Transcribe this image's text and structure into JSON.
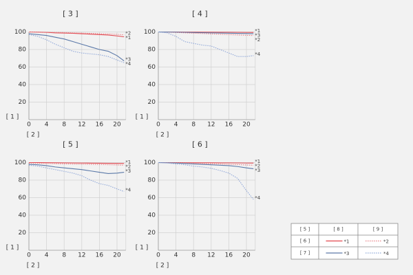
{
  "chart_data": [
    {
      "type": "line",
      "title": "[ 3 ]",
      "y_label": "[ 1 ]",
      "x_label": "[ 2 ]",
      "x": [
        0,
        2,
        4,
        6,
        8,
        10,
        12,
        14,
        16,
        18,
        20,
        21.6
      ],
      "xlim": [
        0,
        22
      ],
      "xticks": [
        0,
        4,
        8,
        12,
        16,
        20
      ],
      "ylim": [
        0,
        100
      ],
      "yticks": [
        20,
        40,
        60,
        80,
        100
      ],
      "grid": true,
      "series": [
        {
          "name": "*1",
          "color": "#e2454d",
          "linestyle": "solid",
          "values": [
            100,
            99.8,
            99.5,
            99,
            98.8,
            98.5,
            98,
            97.5,
            97,
            96.5,
            95.5,
            94.5
          ]
        },
        {
          "name": "*2",
          "color": "#ea8086",
          "linestyle": "dotted",
          "values": [
            100,
            99.9,
            99.7,
            99.5,
            99.3,
            99,
            98.7,
            98.4,
            98,
            97.8,
            97.3,
            96.8
          ]
        },
        {
          "name": "*3",
          "color": "#5a78a8",
          "linestyle": "solid",
          "values": [
            98,
            97,
            96,
            94,
            92,
            89,
            86,
            83,
            80,
            78,
            73,
            67
          ]
        },
        {
          "name": "*4",
          "color": "#8ea6d8",
          "linestyle": "dotted",
          "values": [
            97,
            95,
            91,
            86,
            82,
            78,
            76,
            75,
            74,
            72,
            68,
            65
          ]
        }
      ]
    },
    {
      "type": "line",
      "title": "[ 4 ]",
      "y_label": "[ 1 ]",
      "x_label": "[ 2 ]",
      "x": [
        0,
        2,
        4,
        6,
        8,
        10,
        12,
        14,
        16,
        18,
        20,
        21.6
      ],
      "xlim": [
        0,
        22
      ],
      "xticks": [
        0,
        4,
        8,
        12,
        16,
        20
      ],
      "ylim": [
        0,
        100
      ],
      "yticks": [
        20,
        40,
        60,
        80,
        100
      ],
      "grid": true,
      "series": [
        {
          "name": "*1",
          "color": "#e2454d",
          "linestyle": "solid",
          "values": [
            100,
            100,
            100,
            99.9,
            99.9,
            99.8,
            99.8,
            99.7,
            99.7,
            99.6,
            99.5,
            99.5
          ]
        },
        {
          "name": "*2",
          "color": "#ea8086",
          "linestyle": "dotted",
          "values": [
            100,
            99.8,
            99.5,
            99,
            98.6,
            98.2,
            97.8,
            97.4,
            97,
            96.6,
            96.2,
            96
          ]
        },
        {
          "name": "*3",
          "color": "#5a78a8",
          "linestyle": "solid",
          "values": [
            100,
            99.9,
            99.8,
            99.6,
            99.4,
            99.2,
            99,
            98.8,
            98.6,
            98.4,
            98.2,
            98
          ]
        },
        {
          "name": "*4",
          "color": "#8ea6d8",
          "linestyle": "dotted",
          "values": [
            100,
            99,
            95,
            89,
            87,
            85,
            84,
            80,
            76,
            72,
            72,
            73
          ]
        }
      ]
    },
    {
      "type": "line",
      "title": "[ 5 ]",
      "y_label": "[ 1 ]",
      "x_label": "[ 2 ]",
      "x": [
        0,
        2,
        4,
        6,
        8,
        10,
        12,
        14,
        16,
        18,
        20,
        21.6
      ],
      "xlim": [
        0,
        22
      ],
      "xticks": [
        0,
        4,
        8,
        12,
        16,
        20
      ],
      "ylim": [
        0,
        100
      ],
      "yticks": [
        20,
        40,
        60,
        80,
        100
      ],
      "grid": true,
      "series": [
        {
          "name": "*1",
          "color": "#e2454d",
          "linestyle": "solid",
          "values": [
            100,
            100,
            99.9,
            99.8,
            99.7,
            99.6,
            99.5,
            99.4,
            99.3,
            99.2,
            99.1,
            99
          ]
        },
        {
          "name": "*2",
          "color": "#ea8086",
          "linestyle": "dotted",
          "values": [
            99.5,
            99.3,
            99,
            98.8,
            98.6,
            98.4,
            98.2,
            98,
            97.8,
            97.6,
            97.3,
            97
          ]
        },
        {
          "name": "*3",
          "color": "#5a78a8",
          "linestyle": "solid",
          "values": [
            98,
            97.5,
            96.5,
            95,
            94,
            93,
            92,
            90.5,
            89,
            87.5,
            88,
            89
          ]
        },
        {
          "name": "*4",
          "color": "#8ea6d8",
          "linestyle": "dotted",
          "values": [
            97,
            96,
            94,
            92,
            90,
            88,
            85,
            80,
            76,
            74,
            70,
            67
          ]
        }
      ]
    },
    {
      "type": "line",
      "title": "[ 6 ]",
      "y_label": "[ 1 ]",
      "x_label": "[ 2 ]",
      "x": [
        0,
        2,
        4,
        6,
        8,
        10,
        12,
        14,
        16,
        18,
        20,
        21.6
      ],
      "xlim": [
        0,
        22
      ],
      "xticks": [
        0,
        4,
        8,
        12,
        16,
        20
      ],
      "ylim": [
        0,
        100
      ],
      "yticks": [
        20,
        40,
        60,
        80,
        100
      ],
      "grid": true,
      "series": [
        {
          "name": "*1",
          "color": "#e2454d",
          "linestyle": "solid",
          "values": [
            100,
            100,
            100,
            99.9,
            99.9,
            99.8,
            99.8,
            99.7,
            99.7,
            99.6,
            99.5,
            99.5
          ]
        },
        {
          "name": "*2",
          "color": "#ea8086",
          "linestyle": "dotted",
          "values": [
            100,
            99.9,
            99.7,
            99.5,
            99.3,
            99,
            98.8,
            98.5,
            98,
            97.7,
            97.3,
            97
          ]
        },
        {
          "name": "*3",
          "color": "#5a78a8",
          "linestyle": "solid",
          "values": [
            100,
            99.8,
            99.5,
            99,
            98.5,
            98,
            97.5,
            97,
            96.5,
            95.5,
            94,
            93
          ]
        },
        {
          "name": "*4",
          "color": "#8ea6d8",
          "linestyle": "dotted",
          "values": [
            100,
            99.5,
            98.5,
            97.5,
            96,
            95,
            93.5,
            91,
            88,
            82,
            68,
            58
          ]
        }
      ]
    }
  ],
  "legend": {
    "header": [
      "[ 5 ]",
      "[ 8 ]",
      "[ 9 ]"
    ],
    "rows": [
      {
        "label": "[ 6 ]",
        "entries": [
          {
            "name": "*1",
            "color": "#e2454d",
            "linestyle": "solid"
          },
          {
            "name": "*2",
            "color": "#ea8086",
            "linestyle": "dotted"
          }
        ]
      },
      {
        "label": "[ 7 ]",
        "entries": [
          {
            "name": "*3",
            "color": "#5a78a8",
            "linestyle": "solid"
          },
          {
            "name": "*4",
            "color": "#8ea6d8",
            "linestyle": "dotted"
          }
        ]
      }
    ]
  }
}
